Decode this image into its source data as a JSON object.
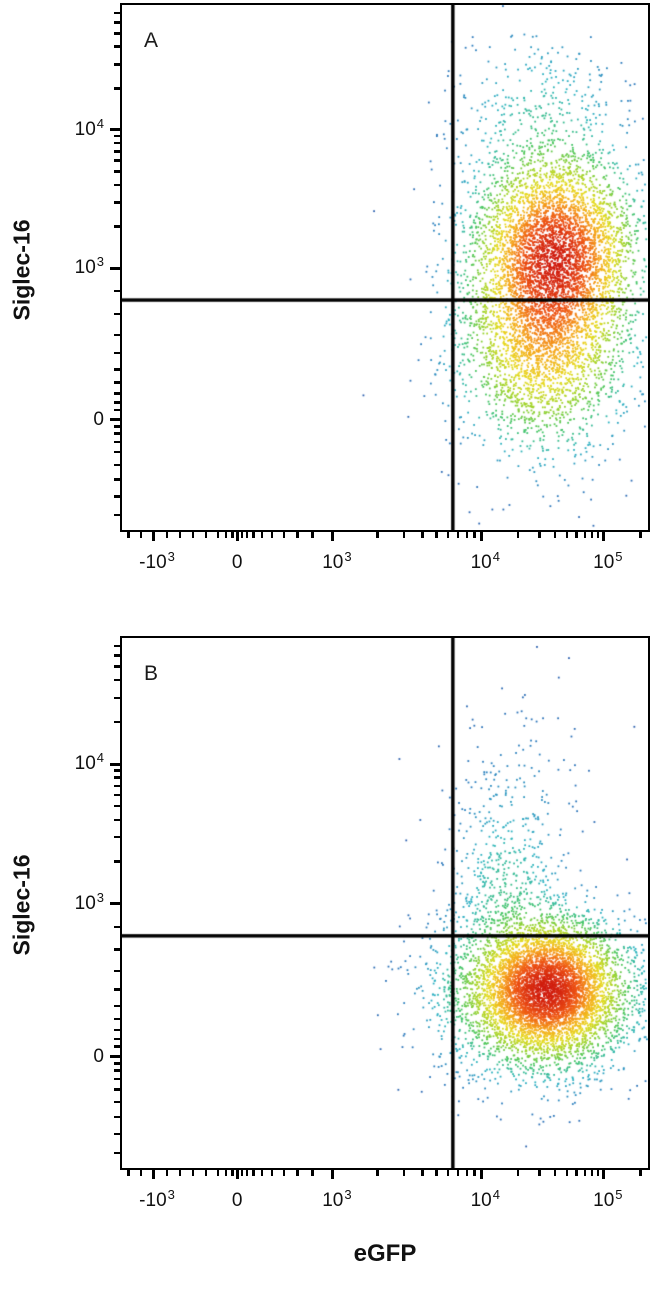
{
  "chart_data": {
    "type": "scatter",
    "subtype": "flow-cytometry-pseudocolor-density-dot-plot",
    "xlabel": "eGFP",
    "ylabel": "Siglec-16",
    "x_scale": "biexponential-log",
    "y_scale": "biexponential-log",
    "x_major_ticks": [
      {
        "base": "-10",
        "exp": "3",
        "f": 0.059
      },
      {
        "base": "0",
        "exp": "",
        "f": 0.219
      },
      {
        "base": "10",
        "exp": "3",
        "f": 0.401
      },
      {
        "base": "10",
        "exp": "4",
        "f": 0.683
      },
      {
        "base": "10",
        "exp": "5",
        "f": 0.916
      }
    ],
    "x_minor_ticks_f": [
      0.012,
      0.036,
      0.085,
      0.11,
      0.135,
      0.16,
      0.182,
      0.198,
      0.21,
      0.228,
      0.238,
      0.25,
      0.266,
      0.285,
      0.308,
      0.334,
      0.362,
      0.486,
      0.536,
      0.571,
      0.598,
      0.62,
      0.639,
      0.656,
      0.67,
      0.753,
      0.794,
      0.823,
      0.846,
      0.864,
      0.88,
      0.893,
      0.905,
      0.986
    ],
    "y_major_ticks": [
      {
        "base": "10",
        "exp": "4",
        "f": 0.238
      },
      {
        "base": "10",
        "exp": "3",
        "f": 0.501
      },
      {
        "base": "0",
        "exp": "",
        "f": 0.79
      }
    ],
    "y_minor_ticks_f": [
      0.015,
      0.033,
      0.054,
      0.079,
      0.113,
      0.159,
      0.25,
      0.263,
      0.279,
      0.296,
      0.317,
      0.343,
      0.376,
      0.422,
      0.545,
      0.588,
      0.628,
      0.663,
      0.694,
      0.719,
      0.74,
      0.757,
      0.771,
      0.803,
      0.816,
      0.832,
      0.852,
      0.876,
      0.904,
      0.936,
      0.972
    ],
    "gate_color": "#000000",
    "axis_color": "#000000",
    "colormap": [
      "#2b59ab",
      "#2e80bf",
      "#2fb4c2",
      "#45c565",
      "#9ed32b",
      "#e6da20",
      "#f5a81c",
      "#ee5514",
      "#cf1b0e"
    ],
    "panels": [
      {
        "label": "A",
        "seed": 7,
        "gate_x_f": 0.629,
        "gate_y_f": 0.562,
        "population": "eGFP-positive, predominantly Siglec-16 positive (dense core above horizontal gate)",
        "clusters": [
          {
            "n": 4000,
            "fx": 0.825,
            "fy": 0.47,
            "sx": 0.075,
            "sy": 0.09
          },
          {
            "n": 2400,
            "fx": 0.8,
            "fy": 0.645,
            "sx": 0.08,
            "sy": 0.1
          },
          {
            "n": 330,
            "fx": 0.79,
            "fy": 0.22,
            "sx": 0.085,
            "sy": 0.1
          },
          {
            "n": 260,
            "fx": 0.815,
            "fy": 0.47,
            "sx": 0.12,
            "sy": 0.22
          }
        ]
      },
      {
        "label": "B",
        "seed": 99,
        "gate_x_f": 0.629,
        "gate_y_f": 0.562,
        "population": "eGFP-positive, predominantly Siglec-16 negative (dense core below horizontal gate)",
        "clusters": [
          {
            "n": 3800,
            "fx": 0.81,
            "fy": 0.662,
            "sx": 0.068,
            "sy": 0.062
          },
          {
            "n": 2600,
            "fx": 0.79,
            "fy": 0.672,
            "sx": 0.1,
            "sy": 0.082
          },
          {
            "n": 380,
            "fx": 0.73,
            "fy": 0.46,
            "sx": 0.055,
            "sy": 0.085
          },
          {
            "n": 120,
            "fx": 0.755,
            "fy": 0.29,
            "sx": 0.075,
            "sy": 0.1
          }
        ]
      }
    ]
  }
}
